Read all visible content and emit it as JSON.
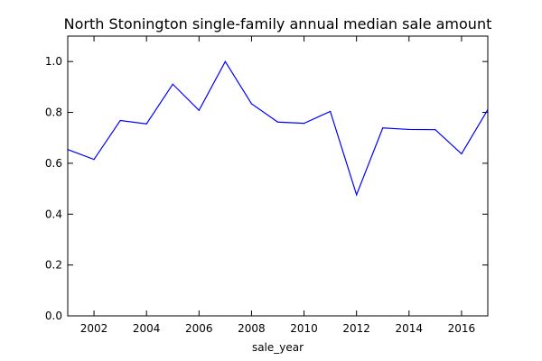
{
  "chart_data": {
    "type": "line",
    "title": "North Stonington single-family annual median sale amount",
    "xlabel": "sale_year",
    "ylabel": "",
    "xlim": [
      2001,
      2017
    ],
    "ylim": [
      0.0,
      1.1
    ],
    "x_ticks": [
      2002,
      2004,
      2006,
      2008,
      2010,
      2012,
      2014,
      2016
    ],
    "x_tick_labels": [
      "2002",
      "2004",
      "2006",
      "2008",
      "2010",
      "2012",
      "2014",
      "2016"
    ],
    "y_ticks": [
      0.0,
      0.2,
      0.4,
      0.6,
      0.8,
      1.0
    ],
    "y_tick_labels": [
      "0.0",
      "0.2",
      "0.4",
      "0.6",
      "0.8",
      "1.0"
    ],
    "grid": false,
    "legend": "none",
    "series": [
      {
        "name": "median_sale_amount",
        "color": "#0000ff",
        "x": [
          2001,
          2002,
          2003,
          2004,
          2005,
          2006,
          2007,
          2008,
          2009,
          2010,
          2011,
          2012,
          2013,
          2014,
          2015,
          2016,
          2017
        ],
        "values": [
          0.654,
          0.615,
          0.768,
          0.755,
          0.911,
          0.808,
          1.0,
          0.834,
          0.762,
          0.757,
          0.804,
          0.476,
          0.739,
          0.733,
          0.732,
          0.637,
          0.811
        ]
      }
    ]
  }
}
